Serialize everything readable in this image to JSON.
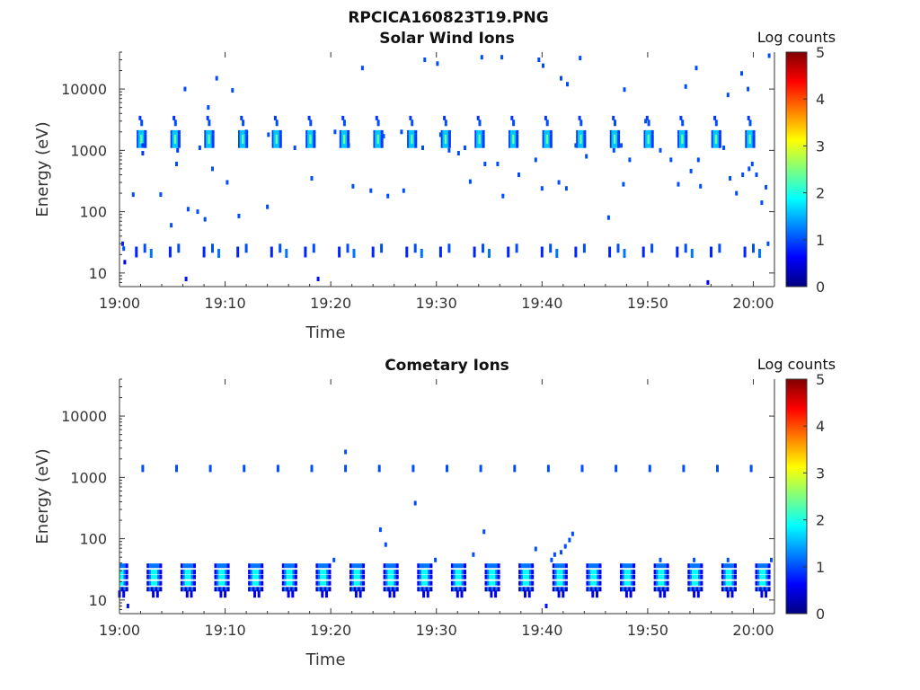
{
  "figure_title": "RPCICA160823T19.PNG",
  "colors": {
    "colormap": [
      "#00007f",
      "#0000ff",
      "#007fff",
      "#00ffff",
      "#7fff7f",
      "#ffff00",
      "#ff7f00",
      "#ff0000",
      "#7f0000"
    ],
    "axis": "#333333",
    "background": "#ffffff"
  },
  "chart_data": [
    {
      "type": "heatmap",
      "title": "Solar Wind Ions",
      "xlabel": "Time",
      "ylabel": "Energy (eV)",
      "y_scale": "log",
      "ylim": [
        6,
        40000
      ],
      "xlim": [
        "19:00",
        "20:02"
      ],
      "x_ticks": [
        "19:00",
        "19:10",
        "19:20",
        "19:30",
        "19:40",
        "19:50",
        "20:00"
      ],
      "y_ticks": [
        "10",
        "100",
        "1000",
        "10000"
      ],
      "colorbar": {
        "label": "Log counts",
        "range": [
          0,
          5
        ],
        "ticks": [
          "0",
          "1",
          "2",
          "3",
          "4",
          "5"
        ]
      },
      "burst_period_min": 3.2,
      "burst_start_min": 2.1,
      "burst_count": 19,
      "burst_core_energy_eV": 1400,
      "burst_core_log_counts": 2.4,
      "burst_high_energy_eV": 2800,
      "burst_low_energy_eV": 22,
      "burst_low_log_counts": 1.0,
      "burst_high_log_counts": 1.0,
      "low_energy_log_counts": 0.8,
      "cells": [
        {
          "t": 0.3,
          "e": 30,
          "c": 0.8
        },
        {
          "t": 0.4,
          "e": 25,
          "c": 1.0
        },
        {
          "t": 0.5,
          "e": 15,
          "c": 0.5
        },
        {
          "t": 6.3,
          "e": 8,
          "c": 0.7
        },
        {
          "t": 18.8,
          "e": 8,
          "c": 0.7
        },
        {
          "t": 55.7,
          "e": 7,
          "c": 0.6
        },
        {
          "t": 2.2,
          "e": 1200,
          "c": 0.9
        },
        {
          "t": 2.2,
          "e": 900,
          "c": 0.9
        },
        {
          "t": 5.5,
          "e": 1000,
          "c": 0.9
        },
        {
          "t": 6.2,
          "e": 10000,
          "c": 1.0
        },
        {
          "t": 8.4,
          "e": 5000,
          "c": 1.0
        },
        {
          "t": 9.2,
          "e": 15000,
          "c": 1.0
        },
        {
          "t": 10.7,
          "e": 9500,
          "c": 1.0
        },
        {
          "t": 23.0,
          "e": 22000,
          "c": 1.0
        },
        {
          "t": 28.9,
          "e": 30000,
          "c": 1.0
        },
        {
          "t": 30.1,
          "e": 26000,
          "c": 1.0
        },
        {
          "t": 34.3,
          "e": 33000,
          "c": 1.0
        },
        {
          "t": 36.2,
          "e": 33000,
          "c": 1.0
        },
        {
          "t": 39.7,
          "e": 30000,
          "c": 1.0
        },
        {
          "t": 40.1,
          "e": 24000,
          "c": 1.0
        },
        {
          "t": 43.6,
          "e": 32000,
          "c": 1.0
        },
        {
          "t": 42.4,
          "e": 12000,
          "c": 1.0
        },
        {
          "t": 41.8,
          "e": 15000,
          "c": 1.0
        },
        {
          "t": 47.8,
          "e": 9800,
          "c": 1.0
        },
        {
          "t": 54.6,
          "e": 22000,
          "c": 1.0
        },
        {
          "t": 53.6,
          "e": 11000,
          "c": 1.0
        },
        {
          "t": 57.6,
          "e": 8000,
          "c": 1.0
        },
        {
          "t": 58.9,
          "e": 18000,
          "c": 1.0
        },
        {
          "t": 59.5,
          "e": 10000,
          "c": 1.0
        },
        {
          "t": 61.5,
          "e": 35000,
          "c": 1.0
        },
        {
          "t": 1.3,
          "e": 190,
          "c": 1.0
        },
        {
          "t": 3.9,
          "e": 190,
          "c": 1.0
        },
        {
          "t": 5.4,
          "e": 600,
          "c": 1.0
        },
        {
          "t": 7.6,
          "e": 1100,
          "c": 1.0
        },
        {
          "t": 8.8,
          "e": 500,
          "c": 1.0
        },
        {
          "t": 10.2,
          "e": 300,
          "c": 1.0
        },
        {
          "t": 7.4,
          "e": 100,
          "c": 1.0
        },
        {
          "t": 8.1,
          "e": 75,
          "c": 1.0
        },
        {
          "t": 11.3,
          "e": 85,
          "c": 1.0
        },
        {
          "t": 12.0,
          "e": 2000,
          "c": 1.0
        },
        {
          "t": 14.1,
          "e": 1800,
          "c": 1.0
        },
        {
          "t": 14.0,
          "e": 120,
          "c": 1.0
        },
        {
          "t": 16.6,
          "e": 1100,
          "c": 1.0
        },
        {
          "t": 18.2,
          "e": 350,
          "c": 1.0
        },
        {
          "t": 20.4,
          "e": 2000,
          "c": 1.0
        },
        {
          "t": 21.7,
          "e": 1200,
          "c": 1.0
        },
        {
          "t": 22.1,
          "e": 260,
          "c": 1.0
        },
        {
          "t": 23.8,
          "e": 220,
          "c": 1.0
        },
        {
          "t": 25.4,
          "e": 180,
          "c": 1.0
        },
        {
          "t": 26.9,
          "e": 220,
          "c": 1.0
        },
        {
          "t": 26.7,
          "e": 2000,
          "c": 1.0
        },
        {
          "t": 28.7,
          "e": 1100,
          "c": 1.0
        },
        {
          "t": 30.4,
          "e": 1800,
          "c": 1.0
        },
        {
          "t": 31.2,
          "e": 1000,
          "c": 1.0
        },
        {
          "t": 32.1,
          "e": 900,
          "c": 1.0
        },
        {
          "t": 32.7,
          "e": 1100,
          "c": 1.0
        },
        {
          "t": 33.2,
          "e": 310,
          "c": 1.0
        },
        {
          "t": 34.6,
          "e": 600,
          "c": 1.0
        },
        {
          "t": 35.8,
          "e": 600,
          "c": 1.0
        },
        {
          "t": 37.8,
          "e": 400,
          "c": 1.0
        },
        {
          "t": 39.4,
          "e": 700,
          "c": 1.0
        },
        {
          "t": 40.0,
          "e": 240,
          "c": 1.0
        },
        {
          "t": 41.6,
          "e": 300,
          "c": 1.0
        },
        {
          "t": 42.3,
          "e": 240,
          "c": 1.0
        },
        {
          "t": 43.2,
          "e": 1200,
          "c": 1.0
        },
        {
          "t": 44.2,
          "e": 800,
          "c": 1.0
        },
        {
          "t": 46.8,
          "e": 1000,
          "c": 1.0
        },
        {
          "t": 48.3,
          "e": 700,
          "c": 1.0
        },
        {
          "t": 49.8,
          "e": 3000,
          "c": 1.0
        },
        {
          "t": 51.2,
          "e": 1000,
          "c": 1.0
        },
        {
          "t": 52.2,
          "e": 700,
          "c": 1.0
        },
        {
          "t": 52.9,
          "e": 280,
          "c": 1.0
        },
        {
          "t": 54.1,
          "e": 460,
          "c": 1.0
        },
        {
          "t": 54.8,
          "e": 700,
          "c": 1.0
        },
        {
          "t": 55.0,
          "e": 260,
          "c": 1.0
        },
        {
          "t": 57.2,
          "e": 1100,
          "c": 1.0
        },
        {
          "t": 57.8,
          "e": 350,
          "c": 1.0
        },
        {
          "t": 58.4,
          "e": 200,
          "c": 1.0
        },
        {
          "t": 59.0,
          "e": 400,
          "c": 1.0
        },
        {
          "t": 59.6,
          "e": 500,
          "c": 1.0
        },
        {
          "t": 59.9,
          "e": 600,
          "c": 1.0
        },
        {
          "t": 60.3,
          "e": 400,
          "c": 1.0
        },
        {
          "t": 61.2,
          "e": 250,
          "c": 1.0
        },
        {
          "t": 60.8,
          "e": 140,
          "c": 1.0
        },
        {
          "t": 61.4,
          "e": 30,
          "c": 1.0
        },
        {
          "t": 6.5,
          "e": 110,
          "c": 1.0
        },
        {
          "t": 4.9,
          "e": 60,
          "c": 1.0
        },
        {
          "t": 25.0,
          "e": 1700,
          "c": 1.0
        },
        {
          "t": 36.3,
          "e": 180,
          "c": 1.0
        },
        {
          "t": 46.3,
          "e": 80,
          "c": 1.0
        },
        {
          "t": 47.5,
          "e": 1200,
          "c": 1.0
        },
        {
          "t": 47.7,
          "e": 280,
          "c": 1.0
        }
      ]
    },
    {
      "type": "heatmap",
      "title": "Cometary Ions",
      "xlabel": "Time",
      "ylabel": "Energy (eV)",
      "y_scale": "log",
      "ylim": [
        6,
        40000
      ],
      "xlim": [
        "19:00",
        "20:02"
      ],
      "x_ticks": [
        "19:00",
        "19:10",
        "19:20",
        "19:30",
        "19:40",
        "19:50",
        "20:00"
      ],
      "y_ticks": [
        "10",
        "100",
        "1000",
        "10000"
      ],
      "colorbar": {
        "label": "Log counts",
        "range": [
          0,
          5
        ],
        "ticks": [
          "0",
          "1",
          "2",
          "3",
          "4",
          "5"
        ]
      },
      "burst_period_min": 3.2,
      "burst_start_min": 0.1,
      "burst_count": 20,
      "burst_core_energy_eV": 25,
      "burst_core_log_counts": 1.9,
      "burst_line_energy_eV": 1400,
      "burst_line_log_counts": 1.0,
      "cells": [
        {
          "t": 0.8,
          "e": 8,
          "c": 0.7
        },
        {
          "t": 40.4,
          "e": 8,
          "c": 0.7
        },
        {
          "t": 21.4,
          "e": 2600,
          "c": 1.0
        },
        {
          "t": 28.0,
          "e": 380,
          "c": 1.0
        },
        {
          "t": 24.7,
          "e": 140,
          "c": 1.0
        },
        {
          "t": 25.2,
          "e": 80,
          "c": 1.0
        },
        {
          "t": 34.5,
          "e": 130,
          "c": 1.0
        },
        {
          "t": 33.5,
          "e": 55,
          "c": 1.0
        },
        {
          "t": 29.9,
          "e": 45,
          "c": 1.0
        },
        {
          "t": 41.8,
          "e": 60,
          "c": 1.0
        },
        {
          "t": 42.2,
          "e": 75,
          "c": 1.0
        },
        {
          "t": 42.6,
          "e": 95,
          "c": 1.0
        },
        {
          "t": 42.9,
          "e": 120,
          "c": 1.0
        },
        {
          "t": 41.2,
          "e": 55,
          "c": 1.0
        },
        {
          "t": 39.4,
          "e": 68,
          "c": 1.0
        },
        {
          "t": 40.9,
          "e": 45,
          "c": 1.0
        },
        {
          "t": 20.3,
          "e": 45,
          "c": 1.0
        },
        {
          "t": 51.2,
          "e": 45,
          "c": 1.0
        },
        {
          "t": 54.4,
          "e": 45,
          "c": 1.0
        },
        {
          "t": 57.6,
          "e": 45,
          "c": 1.0
        },
        {
          "t": 61.7,
          "e": 45,
          "c": 1.0
        }
      ]
    }
  ]
}
